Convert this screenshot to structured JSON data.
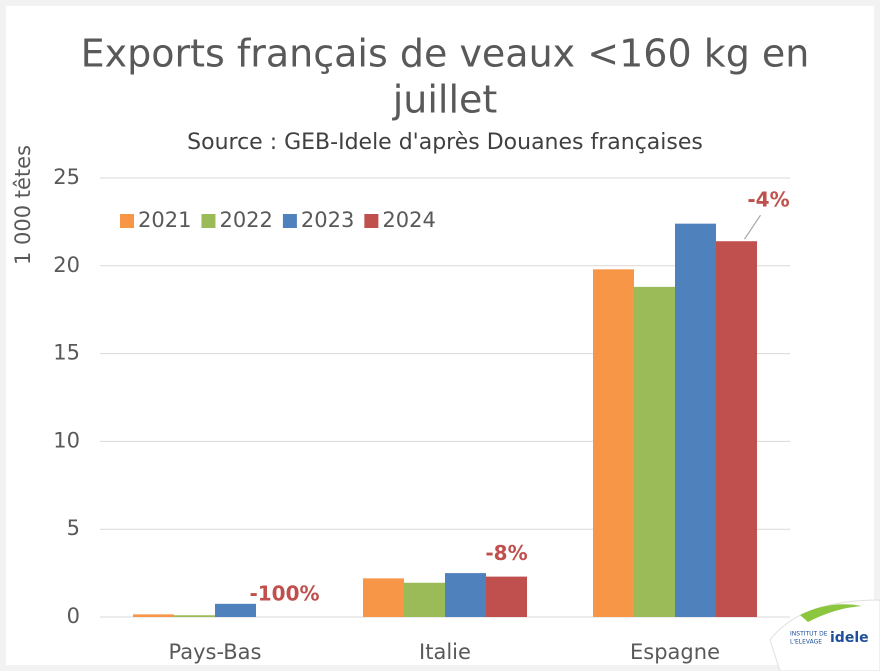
{
  "chart_data": {
    "type": "bar",
    "title_lines": [
      "Exports français de veaux <160 kg en",
      "juillet"
    ],
    "subtitle": "Source : GEB-Idele d'après Douanes françaises",
    "y_label": "1 000 têtes",
    "categories": [
      "Pays-Bas",
      "Italie",
      "Espagne"
    ],
    "series": [
      {
        "name": "2021",
        "color": "#f79646",
        "values": [
          0.15,
          2.2,
          19.8
        ]
      },
      {
        "name": "2022",
        "color": "#9bbb59",
        "values": [
          0.1,
          1.95,
          18.8
        ]
      },
      {
        "name": "2023",
        "color": "#4f81bd",
        "values": [
          0.75,
          2.5,
          22.4
        ]
      },
      {
        "name": "2024",
        "color": "#c0504d",
        "values": [
          0,
          2.3,
          21.4
        ]
      }
    ],
    "annotations": [
      "-100%",
      "-8%",
      "-4%"
    ],
    "ylim": [
      0,
      25
    ],
    "yticks": [
      0,
      5,
      10,
      15,
      20,
      25
    ],
    "grid": true,
    "legend": "top-left",
    "logo": {
      "line1": "INSTITUT DE",
      "line2": "L'ELEVAGE",
      "brand": "idele"
    }
  }
}
